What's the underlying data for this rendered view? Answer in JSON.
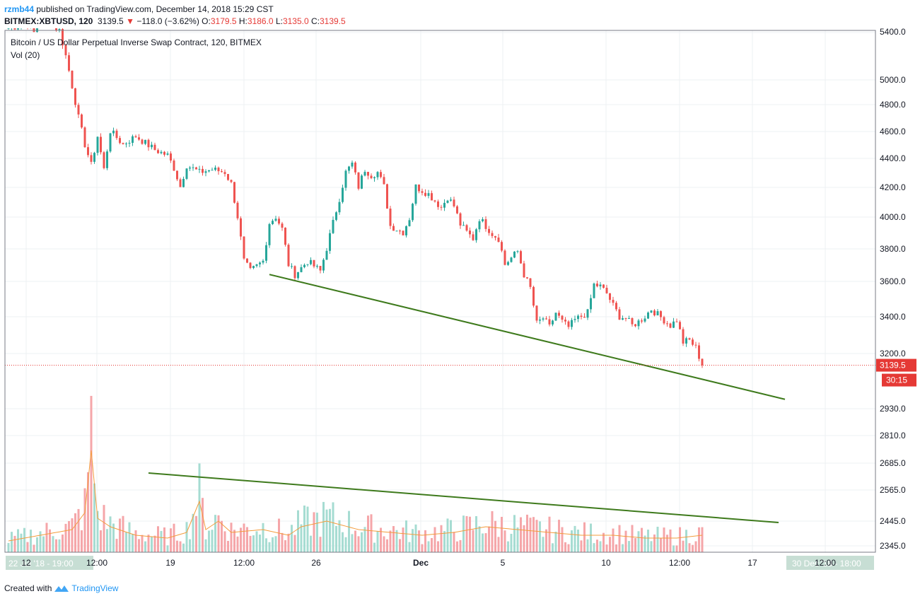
{
  "header": {
    "publisher": "rzmb44",
    "publish_text": "published on TradingView.com, December 14, 2018 15:29 CST",
    "symbol": "BITMEX:XBTUSD, 120",
    "last": "3139.5",
    "change": "−118.0 (−3.62%)",
    "o_label": "O:",
    "o_value": "3179.5",
    "h_label": "H:",
    "h_value": "3186.0",
    "l_label": "L:",
    "l_value": "3135.0",
    "c_label": "C:",
    "c_value": "3139.5"
  },
  "legend": {
    "title": "Bitcoin / US Dollar Perpetual Inverse Swap Contract, 120, BITMEX",
    "vol": "Vol (20)"
  },
  "footer": {
    "created_with": "Created with",
    "brand": "TradingView"
  },
  "colors": {
    "up": "#26a69a",
    "down": "#ef5350",
    "vol_up": "#a6dcd2",
    "vol_down": "#f5a6a9",
    "trend": "#3e7a1c",
    "ma": "#f39c3c",
    "last_price": "#e53935"
  },
  "chart_data": {
    "type": "candlestick",
    "symbol": "XBTUSD",
    "interval": "120",
    "y_scale": "log",
    "price_axis_ticks": [
      5400.0,
      5000.0,
      4800.0,
      4600.0,
      4400.0,
      4200.0,
      4000.0,
      3800.0,
      3600.0,
      3400.0,
      3200.0,
      2930.0,
      2810.0,
      2685.0,
      2565.0,
      2445.0,
      2345.0
    ],
    "price_axis_labels": [
      "5400.0",
      "5000.0",
      "4800.0",
      "4600.0",
      "4400.0",
      "4200.0",
      "4000.0",
      "3800.0",
      "3600.0",
      "3400.0",
      "3200.0",
      "2930.0",
      "2810.0",
      "2685.0",
      "2565.0",
      "2445.0",
      "2345.0"
    ],
    "time_axis_labels": [
      "12",
      "12:00",
      "19",
      "12:00",
      "26",
      "12:00",
      "Dec",
      "5",
      "10",
      "12:00",
      "17",
      "12:00"
    ],
    "time_axis_bold": [
      "Dec"
    ],
    "range_start_label": "22 Jul '18 - 19:00",
    "range_end_label": "30 Dec '18 - 18:00",
    "last_price_label": "3139.5",
    "countdown_label": "30:15",
    "last_price": 3139.5,
    "price_path": [
      [
        0,
        5440
      ],
      [
        3,
        5480
      ],
      [
        4,
        5400
      ],
      [
        5,
        5520
      ],
      [
        7,
        5460
      ],
      [
        8,
        5420
      ],
      [
        9,
        5200
      ],
      [
        10,
        4950
      ],
      [
        11,
        4700
      ],
      [
        12,
        4500
      ],
      [
        13,
        4350
      ],
      [
        14,
        4560
      ],
      [
        15,
        4320
      ],
      [
        16,
        4600
      ],
      [
        18,
        4500
      ],
      [
        20,
        4560
      ],
      [
        23,
        4460
      ],
      [
        25,
        4420
      ],
      [
        26,
        4330
      ],
      [
        27,
        4200
      ],
      [
        28,
        4350
      ],
      [
        30,
        4300
      ],
      [
        32,
        4320
      ],
      [
        34,
        4300
      ],
      [
        35,
        4220
      ],
      [
        36,
        4000
      ],
      [
        37,
        3720
      ],
      [
        38,
        3660
      ],
      [
        40,
        3720
      ],
      [
        41,
        3960
      ],
      [
        42,
        4000
      ],
      [
        43,
        3920
      ],
      [
        44,
        3700
      ],
      [
        45,
        3640
      ],
      [
        47,
        3720
      ],
      [
        49,
        3660
      ],
      [
        50,
        3800
      ],
      [
        51,
        3960
      ],
      [
        52,
        4120
      ],
      [
        53,
        4300
      ],
      [
        54,
        4360
      ],
      [
        55,
        4200
      ],
      [
        56,
        4320
      ],
      [
        57,
        4280
      ],
      [
        58,
        4300
      ],
      [
        59,
        4200
      ],
      [
        60,
        3940
      ],
      [
        62,
        3900
      ],
      [
        63,
        3990
      ],
      [
        64,
        4200
      ],
      [
        66,
        4150
      ],
      [
        68,
        4060
      ],
      [
        69,
        4130
      ],
      [
        70,
        4070
      ],
      [
        71,
        3950
      ],
      [
        72,
        3900
      ],
      [
        73,
        3860
      ],
      [
        74,
        3990
      ],
      [
        76,
        3890
      ],
      [
        77,
        3860
      ],
      [
        78,
        3700
      ],
      [
        79,
        3740
      ],
      [
        80,
        3780
      ],
      [
        81,
        3640
      ],
      [
        82,
        3560
      ],
      [
        83,
        3360
      ],
      [
        84,
        3390
      ],
      [
        85,
        3340
      ],
      [
        86,
        3420
      ],
      [
        87,
        3370
      ],
      [
        88,
        3340
      ],
      [
        89,
        3380
      ],
      [
        90,
        3400
      ],
      [
        91,
        3420
      ],
      [
        92,
        3580
      ],
      [
        93,
        3570
      ],
      [
        94,
        3530
      ],
      [
        95,
        3460
      ],
      [
        96,
        3400
      ],
      [
        97,
        3390
      ],
      [
        98,
        3350
      ],
      [
        99,
        3370
      ],
      [
        100,
        3400
      ],
      [
        101,
        3440
      ],
      [
        102,
        3410
      ],
      [
        103,
        3380
      ],
      [
        104,
        3350
      ],
      [
        105,
        3380
      ],
      [
        106,
        3260
      ],
      [
        107,
        3270
      ],
      [
        108,
        3230
      ],
      [
        109,
        3139.5
      ]
    ],
    "volume_path": [
      [
        0,
        20
      ],
      [
        5,
        30
      ],
      [
        10,
        40
      ],
      [
        12,
        70
      ],
      [
        13,
        180
      ],
      [
        14,
        60
      ],
      [
        16,
        45
      ],
      [
        20,
        30
      ],
      [
        25,
        25
      ],
      [
        28,
        35
      ],
      [
        30,
        90
      ],
      [
        31,
        40
      ],
      [
        33,
        55
      ],
      [
        35,
        35
      ],
      [
        40,
        40
      ],
      [
        44,
        30
      ],
      [
        46,
        45
      ],
      [
        50,
        55
      ],
      [
        55,
        40
      ],
      [
        60,
        35
      ],
      [
        65,
        30
      ],
      [
        70,
        35
      ],
      [
        75,
        45
      ],
      [
        80,
        40
      ],
      [
        85,
        35
      ],
      [
        90,
        30
      ],
      [
        95,
        30
      ],
      [
        100,
        25
      ],
      [
        105,
        25
      ],
      [
        109,
        30
      ]
    ],
    "trendlines": [
      {
        "pane": "price",
        "from": [
          41,
          3640
        ],
        "to": [
          122,
          2970
        ]
      },
      {
        "pane": "volume",
        "from": [
          22,
          2650
        ],
        "to": [
          121,
          2435
        ]
      }
    ]
  }
}
